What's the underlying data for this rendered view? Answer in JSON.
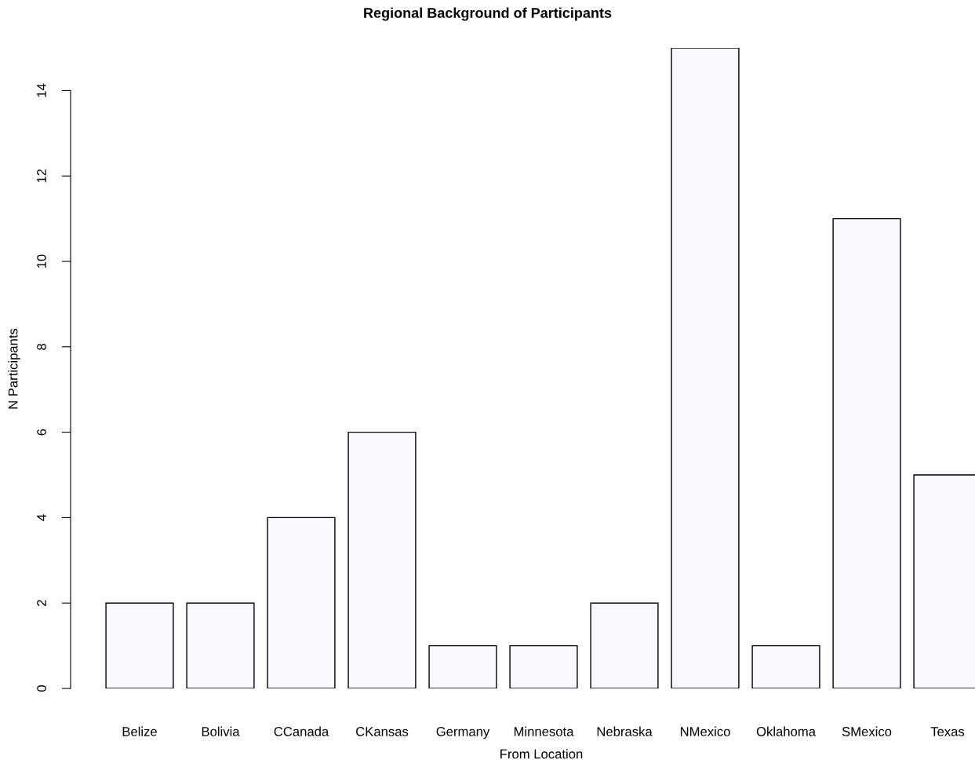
{
  "chart_data": {
    "type": "bar",
    "title": "Regional Background of Participants",
    "xlabel": "From Location",
    "ylabel": "N Participants",
    "categories": [
      "Belize",
      "Bolivia",
      "CCanada",
      "CKansas",
      "Germany",
      "Minnesota",
      "Nebraska",
      "NMexico",
      "Oklahoma",
      "SMexico",
      "Texas"
    ],
    "values": [
      2,
      2,
      4,
      6,
      1,
      1,
      2,
      15,
      1,
      11,
      5
    ],
    "color": "#f8f8ff",
    "ylim": [
      0,
      15
    ],
    "yticks": [
      0,
      2,
      4,
      6,
      8,
      10,
      12,
      14
    ],
    "grid": false,
    "legend": false
  }
}
